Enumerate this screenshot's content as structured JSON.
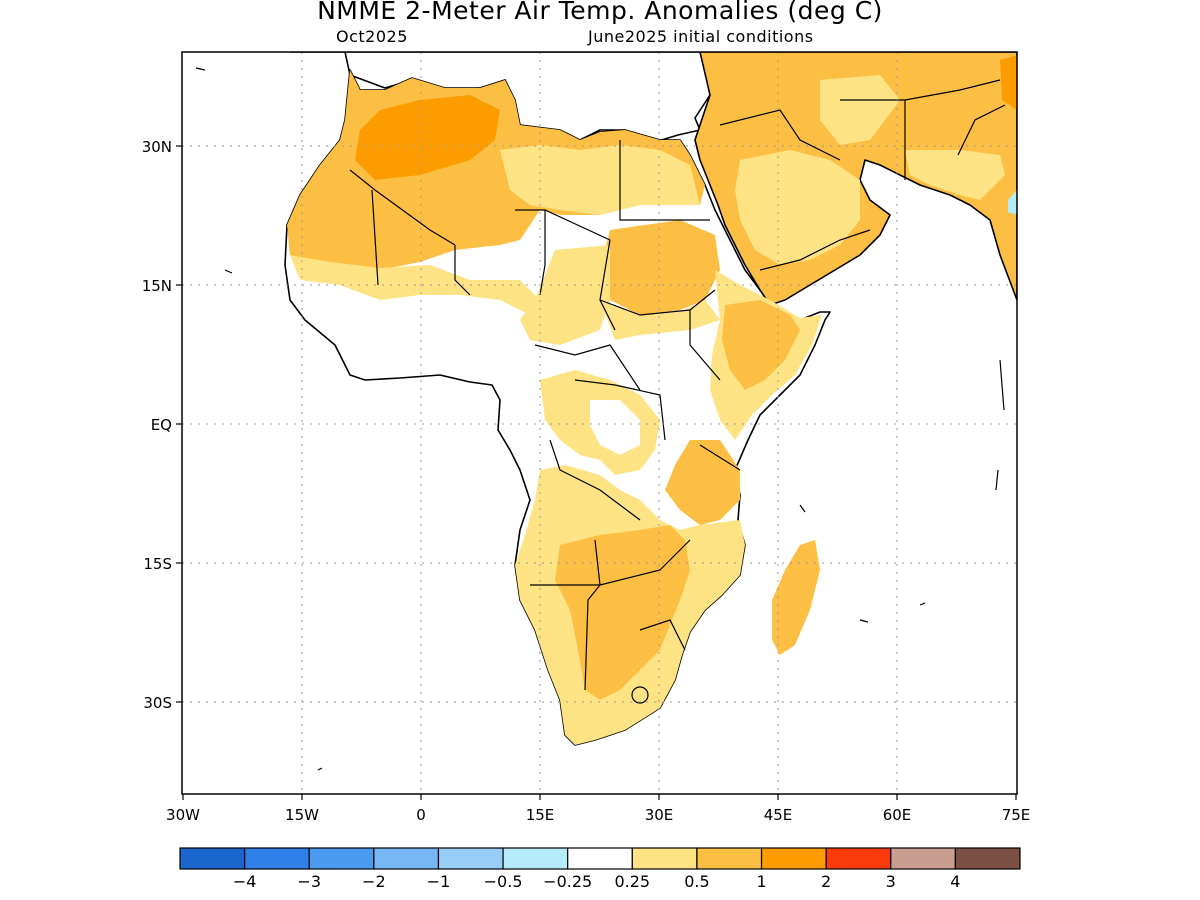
{
  "title": "NMME 2-Meter Air Temp. Anomalies (deg C)",
  "subtitle_left": "Oct2025",
  "subtitle_right": "June2025 initial conditions",
  "axes": {
    "lat_labels": [
      "30N",
      "15N",
      "EQ",
      "15S",
      "30S"
    ],
    "lon_labels": [
      "30W",
      "15W",
      "0",
      "15E",
      "30E",
      "45E",
      "60E",
      "75E"
    ]
  },
  "colorbar": {
    "colors": [
      "#1a66cc",
      "#2f7fe8",
      "#4a9af2",
      "#78b7f6",
      "#98cdf8",
      "#b4ecfa",
      "#ffffff",
      "#fde383",
      "#fcbf43",
      "#fd9c00",
      "#fb3a0c",
      "#c99e90",
      "#7b4f43"
    ],
    "labels": [
      "−4",
      "−3",
      "−2",
      "−1",
      "−0.5",
      "−0.25",
      "0.25",
      "0.5",
      "1",
      "2",
      "3",
      "4"
    ]
  },
  "map_colors": {
    "land_outline": "#000000",
    "weak_warm": "#fde383",
    "warm": "#fcbf43",
    "strong_warm": "#fd9c00",
    "cool": "#b4ecfa",
    "gridline": "#9a9a9a"
  }
}
